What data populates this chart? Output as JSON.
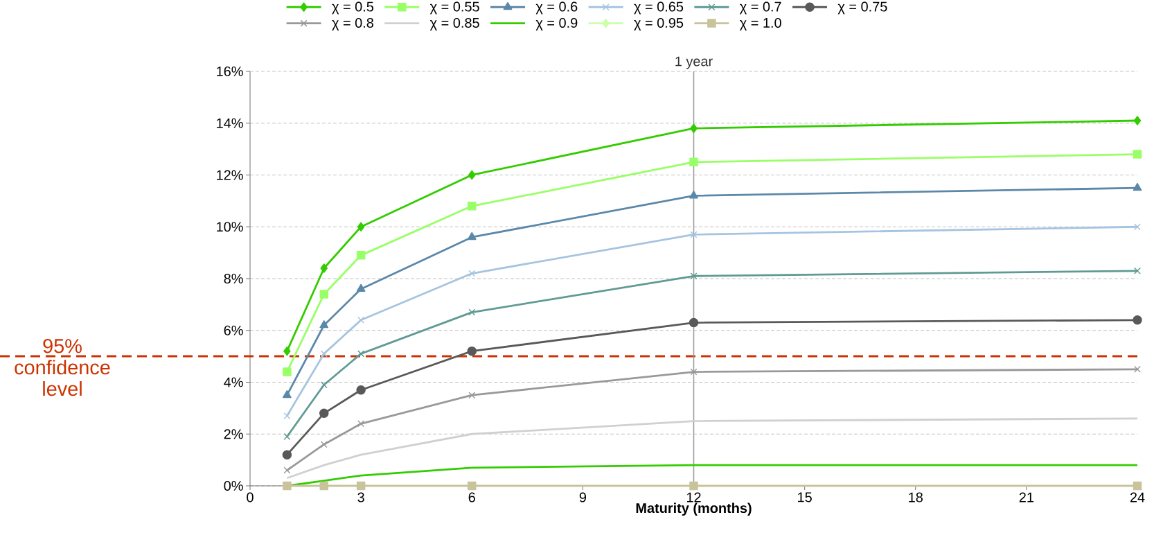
{
  "chart_data": {
    "type": "line",
    "xlabel": "Maturity (months)",
    "x": [
      1,
      2,
      3,
      6,
      12,
      24
    ],
    "series": [
      {
        "name": "χ = 0.5",
        "color": "#33cc00",
        "marker": "diamond",
        "values": [
          5.2,
          8.4,
          10.0,
          12.0,
          13.8,
          14.1
        ]
      },
      {
        "name": "χ = 0.55",
        "color": "#99ff66",
        "marker": "square",
        "values": [
          4.4,
          7.4,
          8.9,
          10.8,
          12.5,
          12.8
        ]
      },
      {
        "name": "χ = 0.6",
        "color": "#5b88a8",
        "marker": "triangle",
        "values": [
          3.5,
          6.2,
          7.6,
          9.6,
          11.2,
          11.5
        ]
      },
      {
        "name": "χ = 0.65",
        "color": "#a6c4e0",
        "marker": "cross",
        "values": [
          2.7,
          5.1,
          6.4,
          8.2,
          9.7,
          10.0
        ]
      },
      {
        "name": "χ = 0.7",
        "color": "#5f9a94",
        "marker": "cross",
        "values": [
          1.9,
          3.9,
          5.1,
          6.7,
          8.1,
          8.3
        ]
      },
      {
        "name": "χ = 0.75",
        "color": "#595959",
        "marker": "circle",
        "values": [
          1.2,
          2.8,
          3.7,
          5.2,
          6.3,
          6.4
        ]
      },
      {
        "name": "χ = 0.8",
        "color": "#999999",
        "marker": "cross",
        "values": [
          0.6,
          1.6,
          2.4,
          3.5,
          4.4,
          4.5
        ]
      },
      {
        "name": "χ = 0.85",
        "color": "#d0d0d0",
        "marker": "none",
        "values": [
          0.3,
          0.8,
          1.2,
          2.0,
          2.5,
          2.6
        ]
      },
      {
        "name": "χ = 0.9",
        "color": "#33cc00",
        "marker": "none",
        "values": [
          0.0,
          0.2,
          0.4,
          0.7,
          0.8,
          0.8
        ]
      },
      {
        "name": "χ = 0.95",
        "color": "#ccffaa",
        "marker": "diamond",
        "values": [
          null,
          null,
          null,
          null,
          null,
          null
        ]
      },
      {
        "name": "χ = 1.0",
        "color": "#c8c39a",
        "marker": "square",
        "values": [
          0,
          0,
          0,
          0,
          0,
          0
        ]
      }
    ],
    "xlim": [
      0,
      24
    ],
    "xticks": [
      0,
      3,
      6,
      9,
      12,
      15,
      18,
      21,
      24
    ],
    "ylim": [
      0,
      16
    ],
    "yticks": [
      {
        "value": 0,
        "label": "0%"
      },
      {
        "value": 2,
        "label": "2%"
      },
      {
        "value": 4,
        "label": "4%"
      },
      {
        "value": 6,
        "label": "6%"
      },
      {
        "value": 8,
        "label": "8%"
      },
      {
        "value": 10,
        "label": "10%"
      },
      {
        "value": 12,
        "label": "12%"
      },
      {
        "value": 14,
        "label": "14%"
      },
      {
        "value": 16,
        "label": "16%"
      }
    ],
    "grid": "y",
    "legend": "top",
    "ref_lines": [
      {
        "axis": "y",
        "value": 5,
        "label": "95% confidence level",
        "color": "#cc3300",
        "line_style": "dashed"
      },
      {
        "axis": "x",
        "value": 12,
        "label": "1 year",
        "color": "#999999",
        "line_style": "solid"
      }
    ]
  }
}
